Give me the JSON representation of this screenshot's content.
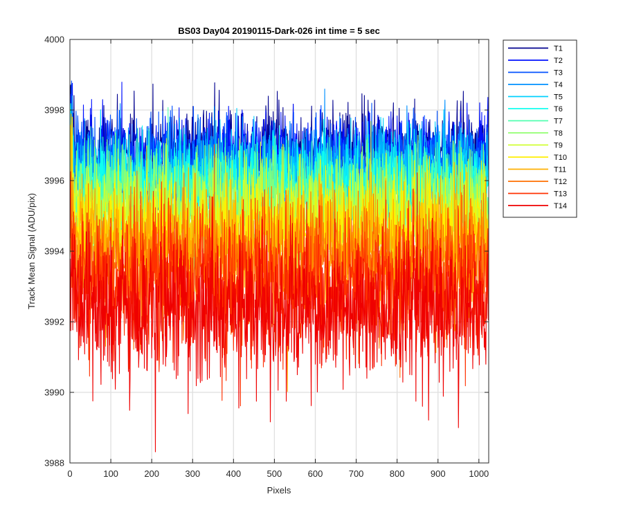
{
  "chart_data": {
    "type": "line",
    "title": "BS03 Day04 20190115-Dark-026 int time = 5 sec",
    "xlabel": "Pixels",
    "ylabel": "Track Mean Signal (ADU/pix)",
    "xlim": [
      0,
      1024
    ],
    "ylim": [
      3988,
      4000
    ],
    "xticks": [
      0,
      100,
      200,
      300,
      400,
      500,
      600,
      700,
      800,
      900,
      1000
    ],
    "yticks": [
      3988,
      3990,
      3992,
      3994,
      3996,
      3998,
      4000
    ],
    "grid": true,
    "legend_position": "outside-top-right",
    "n_points": 1024,
    "series": [
      {
        "name": "T1",
        "color": "#00008F",
        "mean": 3996.9,
        "noise_sd": 0.55
      },
      {
        "name": "T2",
        "color": "#0010FF",
        "mean": 3996.7,
        "noise_sd": 0.55
      },
      {
        "name": "T3",
        "color": "#0050FF",
        "mean": 3996.5,
        "noise_sd": 0.58
      },
      {
        "name": "T4",
        "color": "#0090FF",
        "mean": 3996.3,
        "noise_sd": 0.6
      },
      {
        "name": "T5",
        "color": "#00D0FF",
        "mean": 3996.1,
        "noise_sd": 0.6
      },
      {
        "name": "T6",
        "color": "#10FFEF",
        "mean": 3995.9,
        "noise_sd": 0.62
      },
      {
        "name": "T7",
        "color": "#50FFAF",
        "mean": 3995.6,
        "noise_sd": 0.65
      },
      {
        "name": "T8",
        "color": "#90FF6F",
        "mean": 3995.3,
        "noise_sd": 0.68
      },
      {
        "name": "T9",
        "color": "#CFFF30",
        "mean": 3995.0,
        "noise_sd": 0.7
      },
      {
        "name": "T10",
        "color": "#FFEF00",
        "mean": 3994.6,
        "noise_sd": 0.75
      },
      {
        "name": "T11",
        "color": "#FFAF00",
        "mean": 3994.1,
        "noise_sd": 0.85
      },
      {
        "name": "T12",
        "color": "#FF6F00",
        "mean": 3993.6,
        "noise_sd": 0.9
      },
      {
        "name": "T13",
        "color": "#FF3000",
        "mean": 3993.1,
        "noise_sd": 0.95
      },
      {
        "name": "T14",
        "color": "#EF0000",
        "mean": 3992.4,
        "noise_sd": 1.0
      }
    ]
  }
}
